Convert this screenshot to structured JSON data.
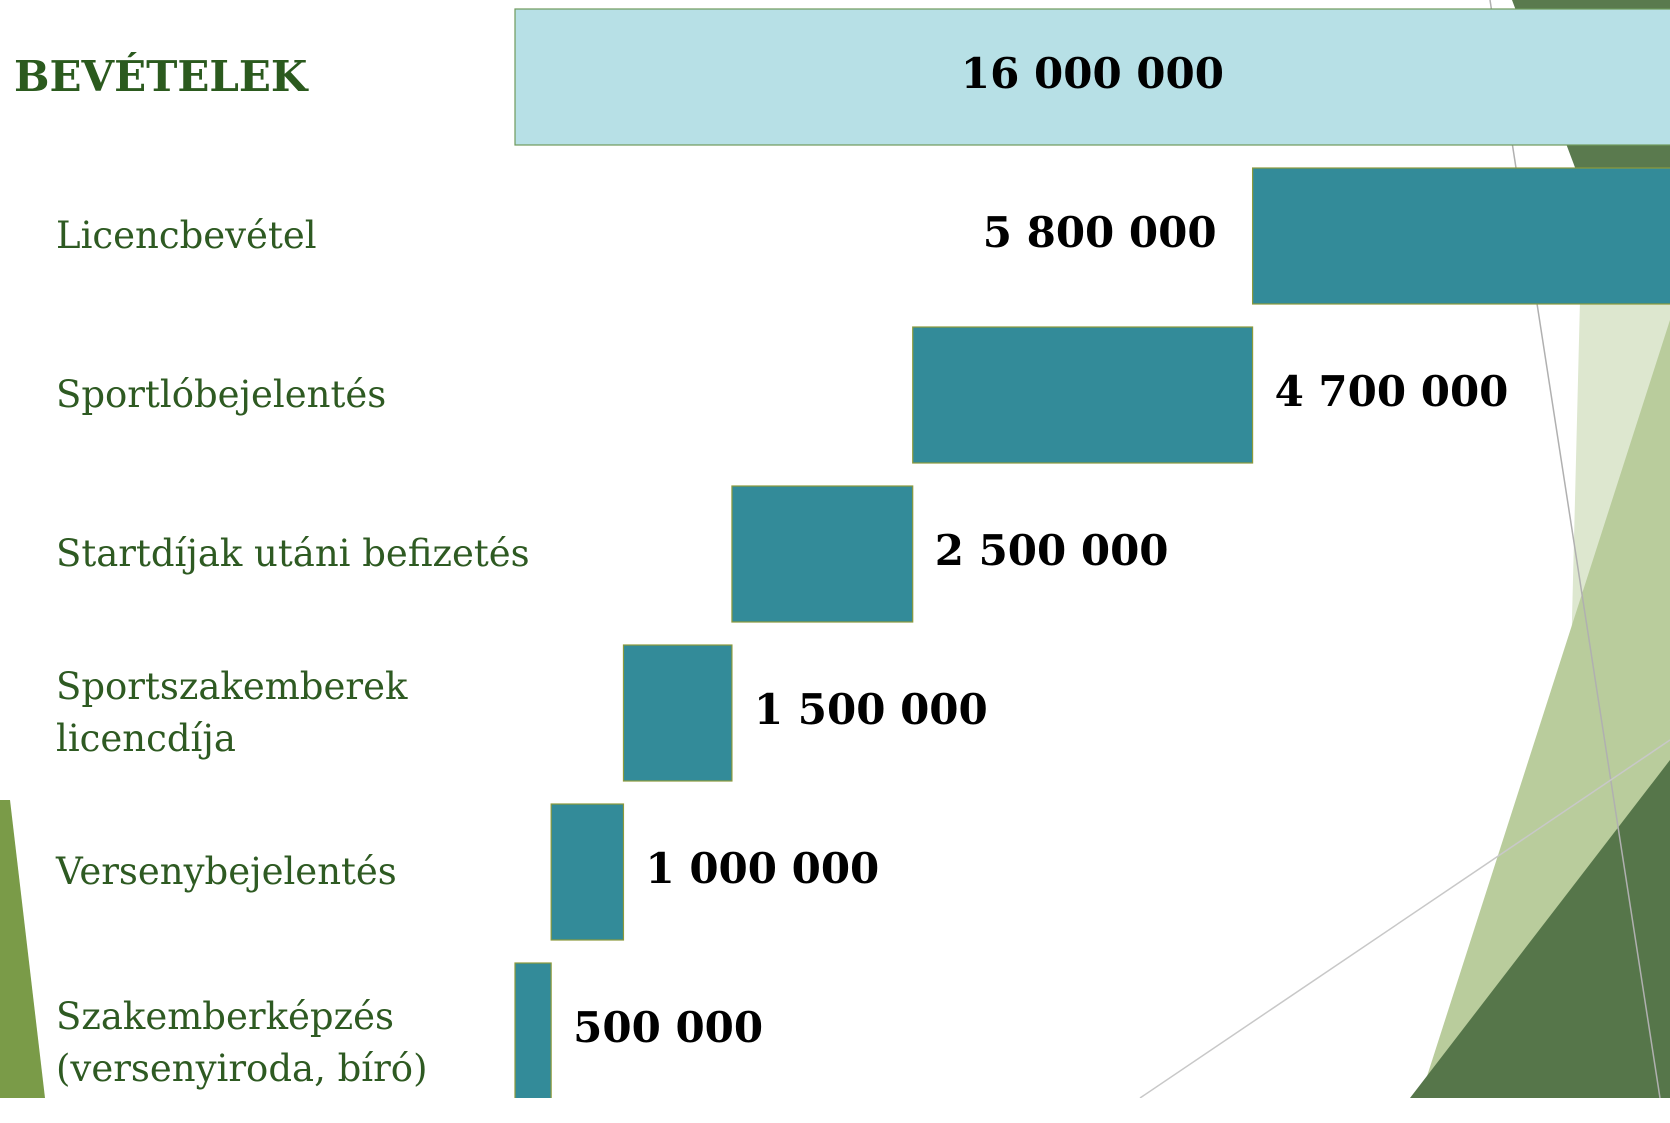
{
  "chart_data": {
    "type": "waterfall",
    "categories": [
      "BEVÉTELEK",
      "Licencbevétel",
      "Sportlóbejelentés",
      "Startdíjak utáni befizetés",
      "Sportszakemberek\nlicencdíja",
      "Versenybejelentés",
      "Szakemberképzés\n(versenyiroda, bíró)"
    ],
    "values": [
      16000000,
      5800000,
      4700000,
      2500000,
      1500000,
      1000000,
      500000
    ],
    "value_labels": [
      "16 000 000",
      "5 800 000",
      "4 700 000",
      "2 500 000",
      "1 500 000",
      "1 000 000",
      "500 000"
    ],
    "total_color": "#b7e0e6",
    "color": "#338b99"
  }
}
